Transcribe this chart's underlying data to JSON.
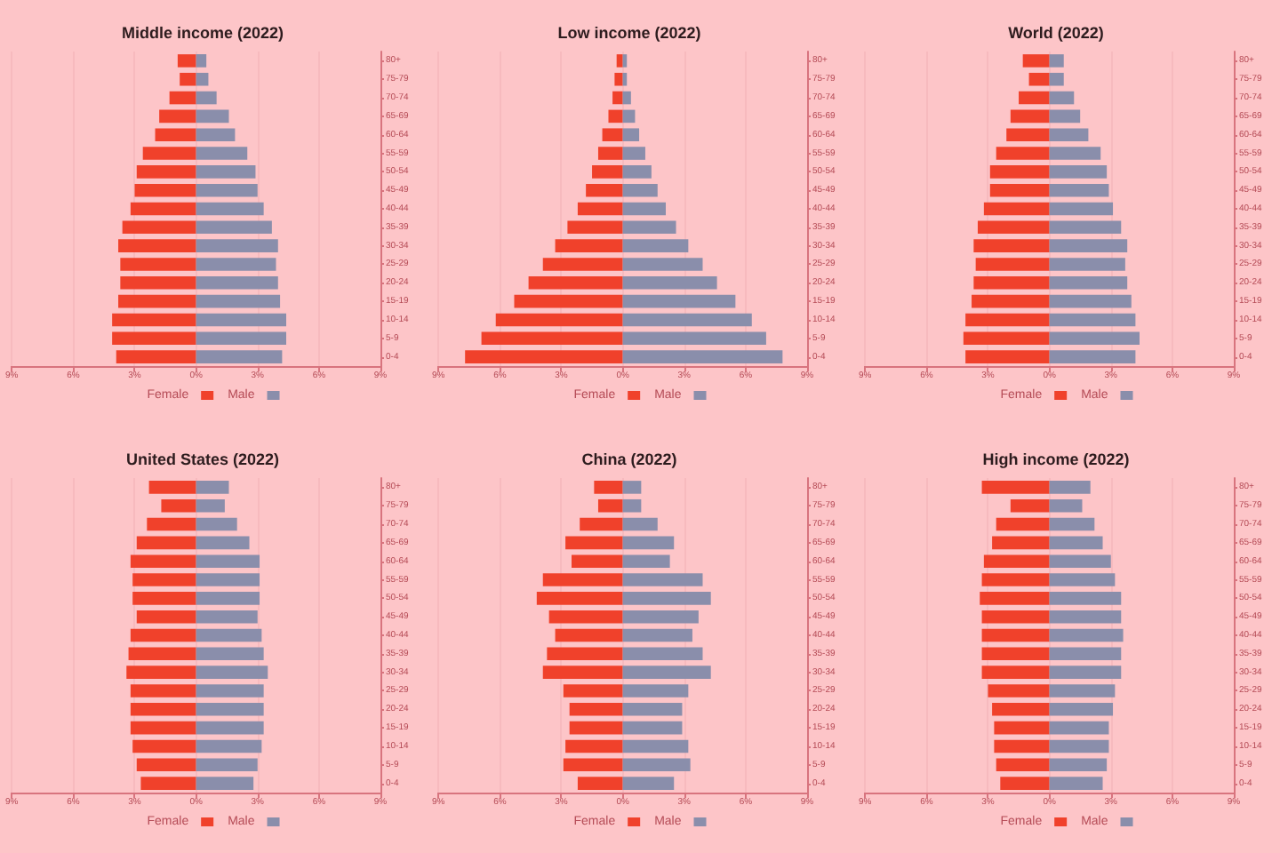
{
  "chart_data": [
    {
      "type": "bar",
      "orientation": "horizontal",
      "stacked": true,
      "title": "Middle income (2022)",
      "categories": [
        "80+",
        "75-79",
        "70-74",
        "65-69",
        "60-64",
        "55-59",
        "50-54",
        "45-49",
        "40-44",
        "35-39",
        "30-34",
        "25-29",
        "20-24",
        "15-19",
        "10-14",
        "5-9",
        "0-4"
      ],
      "series": [
        {
          "name": "Female",
          "color": "#f0412b",
          "values": [
            -0.9,
            -0.8,
            -1.3,
            -1.8,
            -2.0,
            -2.6,
            -2.9,
            -3.0,
            -3.2,
            -3.6,
            -3.8,
            -3.7,
            -3.7,
            -3.8,
            -4.1,
            -4.1,
            -3.9
          ]
        },
        {
          "name": "Male",
          "color": "#8a8eab",
          "values": [
            0.5,
            0.6,
            1.0,
            1.6,
            1.9,
            2.5,
            2.9,
            3.0,
            3.3,
            3.7,
            4.0,
            3.9,
            4.0,
            4.1,
            4.4,
            4.4,
            4.2
          ]
        }
      ],
      "xlim": [
        -9,
        9
      ],
      "xticks": [
        {
          "value": -9,
          "label": "9%"
        },
        {
          "value": -6,
          "label": "6%"
        },
        {
          "value": -3,
          "label": "3%"
        },
        {
          "value": 0,
          "label": "0%"
        },
        {
          "value": 3,
          "label": "3%"
        },
        {
          "value": 6,
          "label": "6%"
        },
        {
          "value": 9,
          "label": "9%"
        }
      ],
      "grid": "x",
      "legend": "bottom"
    },
    {
      "type": "bar",
      "orientation": "horizontal",
      "stacked": true,
      "title": "Low income (2022)",
      "categories": [
        "80+",
        "75-79",
        "70-74",
        "65-69",
        "60-64",
        "55-59",
        "50-54",
        "45-49",
        "40-44",
        "35-39",
        "30-34",
        "25-29",
        "20-24",
        "15-19",
        "10-14",
        "5-9",
        "0-4"
      ],
      "series": [
        {
          "name": "Female",
          "color": "#f0412b",
          "values": [
            -0.3,
            -0.4,
            -0.5,
            -0.7,
            -1.0,
            -1.2,
            -1.5,
            -1.8,
            -2.2,
            -2.7,
            -3.3,
            -3.9,
            -4.6,
            -5.3,
            -6.2,
            -6.9,
            -7.7
          ]
        },
        {
          "name": "Male",
          "color": "#8a8eab",
          "values": [
            0.2,
            0.2,
            0.4,
            0.6,
            0.8,
            1.1,
            1.4,
            1.7,
            2.1,
            2.6,
            3.2,
            3.9,
            4.6,
            5.5,
            6.3,
            7.0,
            7.8
          ]
        }
      ],
      "xlim": [
        -9,
        9
      ],
      "xticks": [
        {
          "value": -9,
          "label": "9%"
        },
        {
          "value": -6,
          "label": "6%"
        },
        {
          "value": -3,
          "label": "3%"
        },
        {
          "value": 0,
          "label": "0%"
        },
        {
          "value": 3,
          "label": "3%"
        },
        {
          "value": 6,
          "label": "6%"
        },
        {
          "value": 9,
          "label": "9%"
        }
      ],
      "grid": "x",
      "legend": "bottom"
    },
    {
      "type": "bar",
      "orientation": "horizontal",
      "stacked": true,
      "title": "World (2022)",
      "categories": [
        "80+",
        "75-79",
        "70-74",
        "65-69",
        "60-64",
        "55-59",
        "50-54",
        "45-49",
        "40-44",
        "35-39",
        "30-34",
        "25-29",
        "20-24",
        "15-19",
        "10-14",
        "5-9",
        "0-4"
      ],
      "series": [
        {
          "name": "Female",
          "color": "#f0412b",
          "values": [
            -1.3,
            -1.0,
            -1.5,
            -1.9,
            -2.1,
            -2.6,
            -2.9,
            -2.9,
            -3.2,
            -3.5,
            -3.7,
            -3.6,
            -3.7,
            -3.8,
            -4.1,
            -4.2,
            -4.1
          ]
        },
        {
          "name": "Male",
          "color": "#8a8eab",
          "values": [
            0.7,
            0.7,
            1.2,
            1.5,
            1.9,
            2.5,
            2.8,
            2.9,
            3.1,
            3.5,
            3.8,
            3.7,
            3.8,
            4.0,
            4.2,
            4.4,
            4.2
          ]
        }
      ],
      "xlim": [
        -9,
        9
      ],
      "xticks": [
        {
          "value": -9,
          "label": "9%"
        },
        {
          "value": -6,
          "label": "6%"
        },
        {
          "value": -3,
          "label": "3%"
        },
        {
          "value": 0,
          "label": "0%"
        },
        {
          "value": 3,
          "label": "3%"
        },
        {
          "value": 6,
          "label": "6%"
        },
        {
          "value": 9,
          "label": "9%"
        }
      ],
      "grid": "x",
      "legend": "bottom"
    },
    {
      "type": "bar",
      "orientation": "horizontal",
      "stacked": true,
      "title": "United States (2022)",
      "categories": [
        "80+",
        "75-79",
        "70-74",
        "65-69",
        "60-64",
        "55-59",
        "50-54",
        "45-49",
        "40-44",
        "35-39",
        "30-34",
        "25-29",
        "20-24",
        "15-19",
        "10-14",
        "5-9",
        "0-4"
      ],
      "series": [
        {
          "name": "Female",
          "color": "#f0412b",
          "values": [
            -2.3,
            -1.7,
            -2.4,
            -2.9,
            -3.2,
            -3.1,
            -3.1,
            -2.9,
            -3.2,
            -3.3,
            -3.4,
            -3.2,
            -3.2,
            -3.2,
            -3.1,
            -2.9,
            -2.7
          ]
        },
        {
          "name": "Male",
          "color": "#8a8eab",
          "values": [
            1.6,
            1.4,
            2.0,
            2.6,
            3.1,
            3.1,
            3.1,
            3.0,
            3.2,
            3.3,
            3.5,
            3.3,
            3.3,
            3.3,
            3.2,
            3.0,
            2.8
          ]
        }
      ],
      "xlim": [
        -9,
        9
      ],
      "xticks": [
        {
          "value": -9,
          "label": "9%"
        },
        {
          "value": -6,
          "label": "6%"
        },
        {
          "value": -3,
          "label": "3%"
        },
        {
          "value": 0,
          "label": "0%"
        },
        {
          "value": 3,
          "label": "3%"
        },
        {
          "value": 6,
          "label": "6%"
        },
        {
          "value": 9,
          "label": "9%"
        }
      ],
      "grid": "x",
      "legend": "bottom"
    },
    {
      "type": "bar",
      "orientation": "horizontal",
      "stacked": true,
      "title": "China (2022)",
      "categories": [
        "80+",
        "75-79",
        "70-74",
        "65-69",
        "60-64",
        "55-59",
        "50-54",
        "45-49",
        "40-44",
        "35-39",
        "30-34",
        "25-29",
        "20-24",
        "15-19",
        "10-14",
        "5-9",
        "0-4"
      ],
      "series": [
        {
          "name": "Female",
          "color": "#f0412b",
          "values": [
            -1.4,
            -1.2,
            -2.1,
            -2.8,
            -2.5,
            -3.9,
            -4.2,
            -3.6,
            -3.3,
            -3.7,
            -3.9,
            -2.9,
            -2.6,
            -2.6,
            -2.8,
            -2.9,
            -2.2
          ]
        },
        {
          "name": "Male",
          "color": "#8a8eab",
          "values": [
            0.9,
            0.9,
            1.7,
            2.5,
            2.3,
            3.9,
            4.3,
            3.7,
            3.4,
            3.9,
            4.3,
            3.2,
            2.9,
            2.9,
            3.2,
            3.3,
            2.5
          ]
        }
      ],
      "xlim": [
        -9,
        9
      ],
      "xticks": [
        {
          "value": -9,
          "label": "9%"
        },
        {
          "value": -6,
          "label": "6%"
        },
        {
          "value": -3,
          "label": "3%"
        },
        {
          "value": 0,
          "label": "0%"
        },
        {
          "value": 3,
          "label": "3%"
        },
        {
          "value": 6,
          "label": "6%"
        },
        {
          "value": 9,
          "label": "9%"
        }
      ],
      "grid": "x",
      "legend": "bottom"
    },
    {
      "type": "bar",
      "orientation": "horizontal",
      "stacked": true,
      "title": "High income (2022)",
      "categories": [
        "80+",
        "75-79",
        "70-74",
        "65-69",
        "60-64",
        "55-59",
        "50-54",
        "45-49",
        "40-44",
        "35-39",
        "30-34",
        "25-29",
        "20-24",
        "15-19",
        "10-14",
        "5-9",
        "0-4"
      ],
      "series": [
        {
          "name": "Female",
          "color": "#f0412b",
          "values": [
            -3.3,
            -1.9,
            -2.6,
            -2.8,
            -3.2,
            -3.3,
            -3.4,
            -3.3,
            -3.3,
            -3.3,
            -3.3,
            -3.0,
            -2.8,
            -2.7,
            -2.7,
            -2.6,
            -2.4
          ]
        },
        {
          "name": "Male",
          "color": "#8a8eab",
          "values": [
            2.0,
            1.6,
            2.2,
            2.6,
            3.0,
            3.2,
            3.5,
            3.5,
            3.6,
            3.5,
            3.5,
            3.2,
            3.1,
            2.9,
            2.9,
            2.8,
            2.6
          ]
        }
      ],
      "xlim": [
        -9,
        9
      ],
      "xticks": [
        {
          "value": -9,
          "label": "9%"
        },
        {
          "value": -6,
          "label": "6%"
        },
        {
          "value": -3,
          "label": "3%"
        },
        {
          "value": 0,
          "label": "0%"
        },
        {
          "value": 3,
          "label": "3%"
        },
        {
          "value": 6,
          "label": "6%"
        },
        {
          "value": 9,
          "label": "9%"
        }
      ],
      "grid": "x",
      "legend": "bottom"
    }
  ]
}
